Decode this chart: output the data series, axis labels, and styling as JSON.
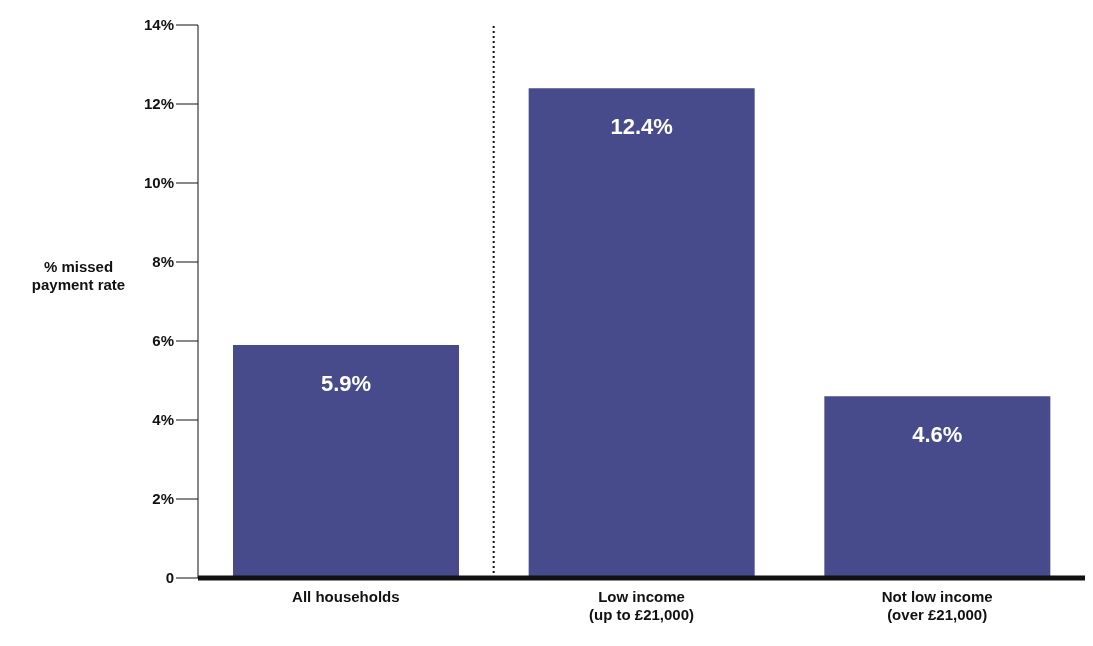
{
  "chart_data": {
    "type": "bar",
    "ylabel": "% missed\npayment rate",
    "categories": [
      "All households",
      "Low income\n(up to £21,000)",
      "Not low income\n(over £21,000)"
    ],
    "values": [
      5.9,
      12.4,
      4.6
    ],
    "color": "#474a8b",
    "value_labels": [
      "5.9%",
      "12.4%",
      "4.6%"
    ],
    "ylim": [
      0,
      14
    ],
    "yticks": [
      0,
      {
        "value": 2,
        "label": "2%"
      },
      {
        "value": 4,
        "label": "4%"
      },
      {
        "value": 6,
        "label": "6%"
      },
      {
        "value": 8,
        "label": "8%"
      },
      {
        "value": 10,
        "label": "10%"
      },
      {
        "value": 12,
        "label": "12%"
      },
      {
        "value": 14,
        "label": "14%"
      }
    ],
    "grid": false,
    "legend": false
  }
}
